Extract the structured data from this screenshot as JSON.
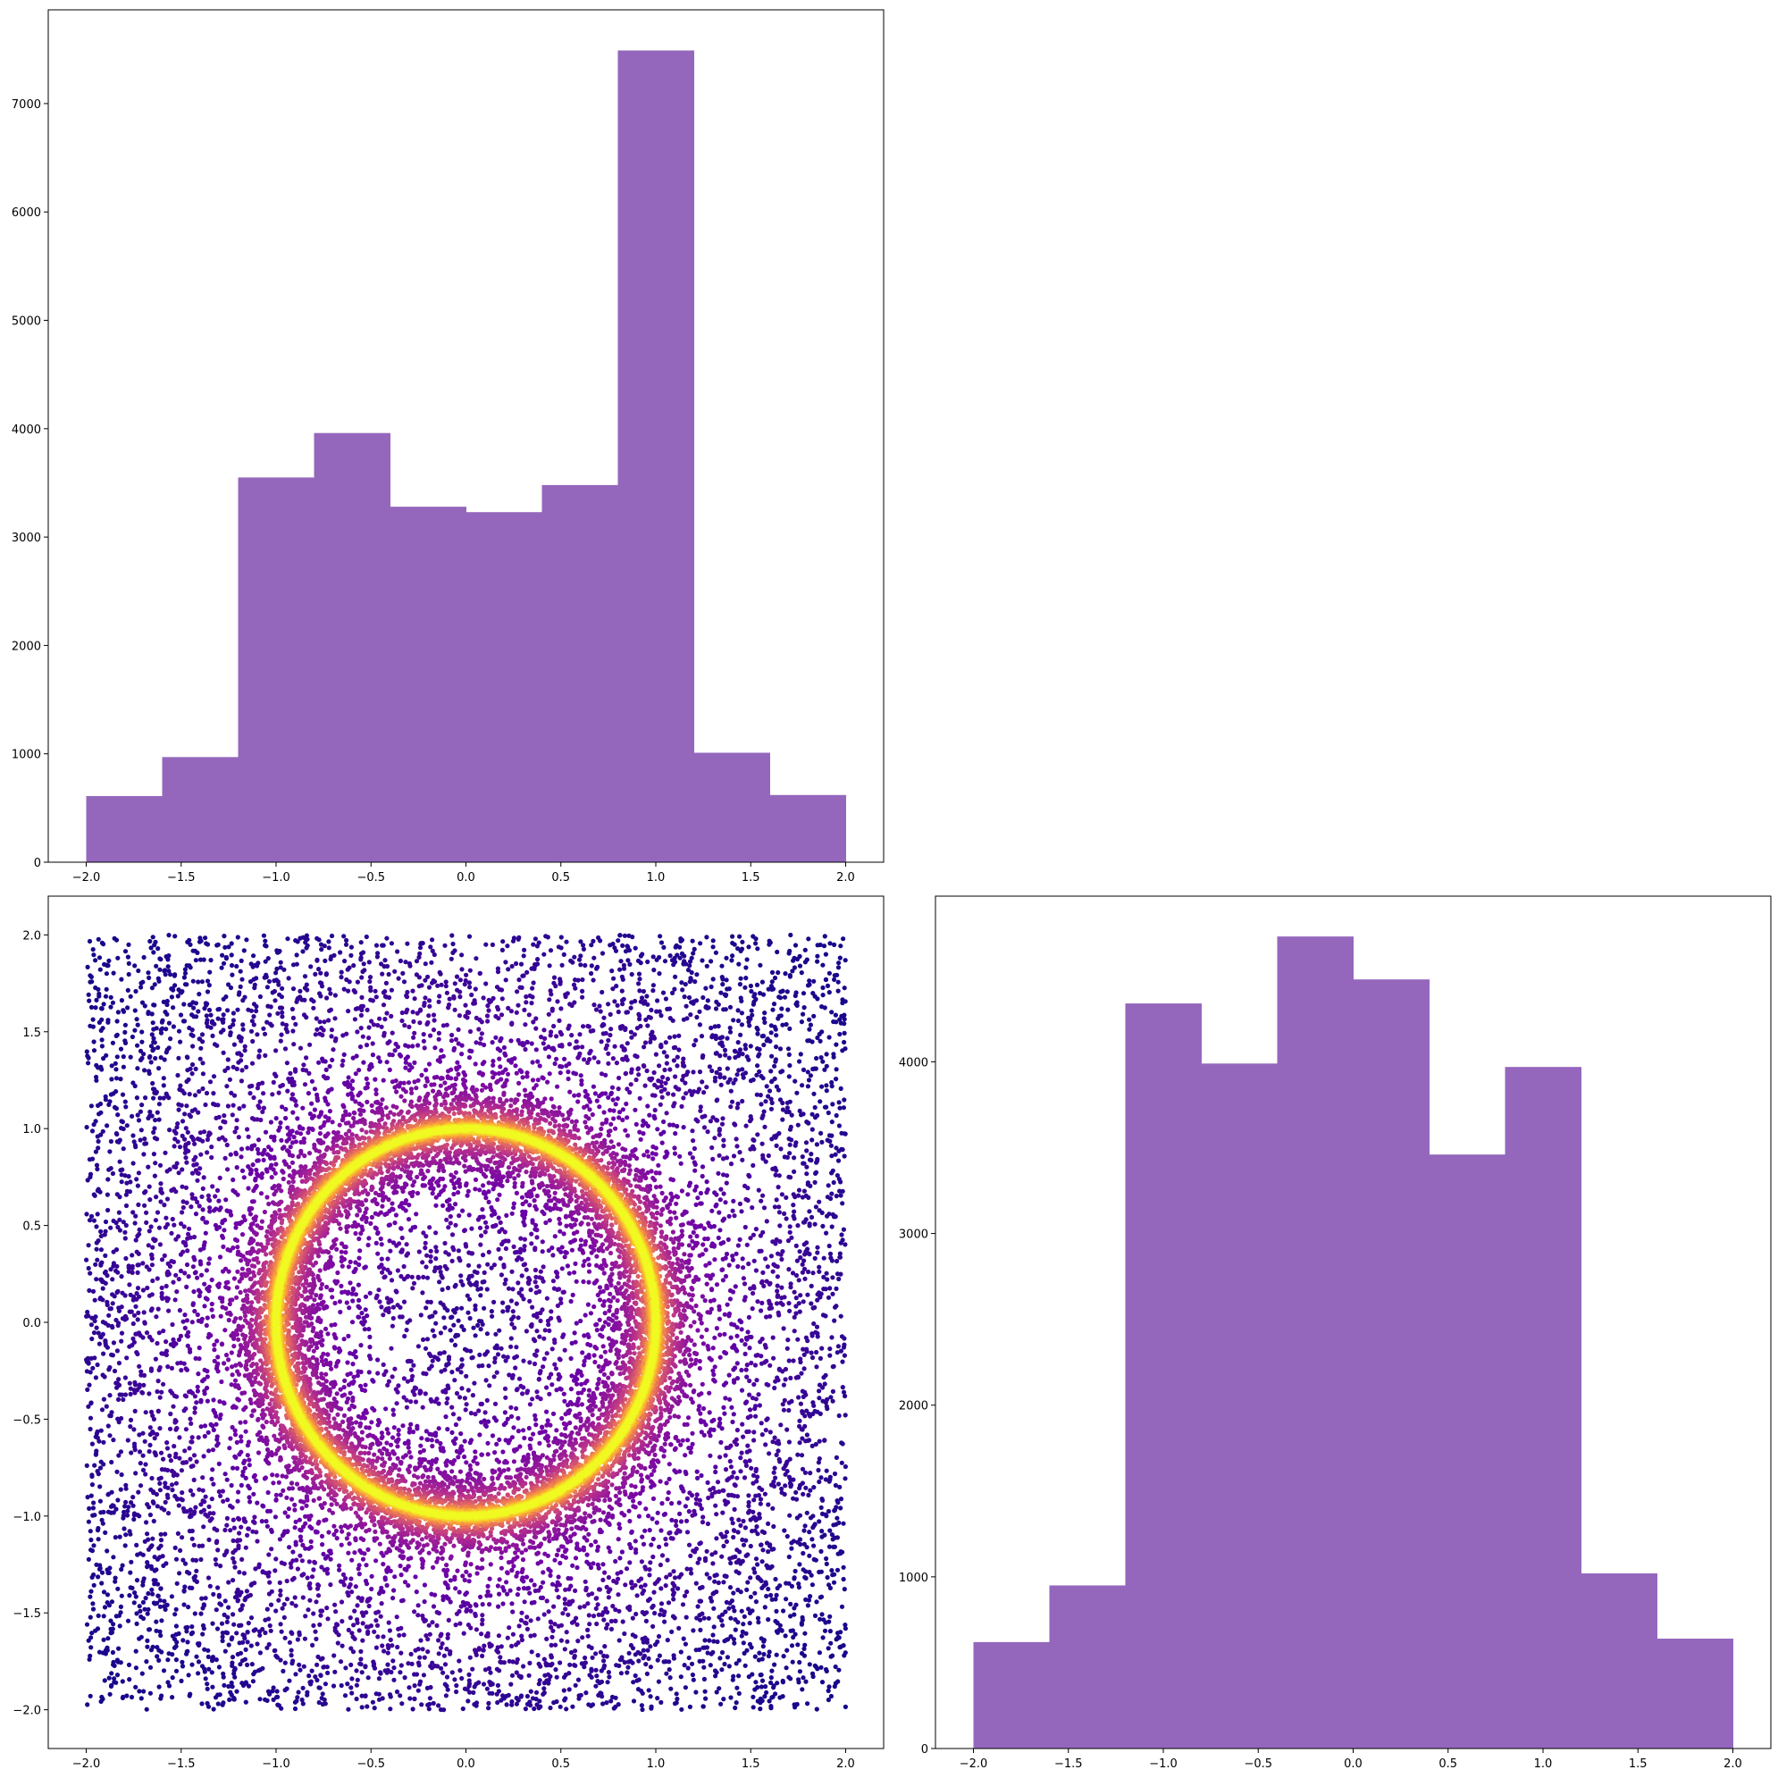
{
  "chart_data": [
    {
      "id": "hist_top",
      "type": "bar",
      "title": "",
      "xlabel": "",
      "ylabel": "",
      "bin_edges": [
        -2.0,
        -1.6,
        -1.2,
        -0.8,
        -0.4,
        0.0,
        0.4,
        0.8,
        1.2,
        1.6,
        2.0
      ],
      "values": [
        610,
        970,
        3550,
        3960,
        3280,
        3230,
        3480,
        7490,
        1010,
        620
      ],
      "xlim": [
        -2.2,
        2.2
      ],
      "ylim": [
        0,
        7865
      ],
      "xticks": [
        -2.0,
        -1.5,
        -1.0,
        -0.5,
        0.0,
        0.5,
        1.0,
        1.5,
        2.0
      ],
      "xtick_labels": [
        "−2.0",
        "−1.5",
        "−1.0",
        "−0.5",
        "0.0",
        "0.5",
        "1.0",
        "1.5",
        "2.0"
      ],
      "yticks": [
        0,
        1000,
        2000,
        3000,
        4000,
        5000,
        6000,
        7000
      ],
      "ytick_labels": [
        "0",
        "1000",
        "2000",
        "3000",
        "4000",
        "5000",
        "6000",
        "7000"
      ],
      "color": "#9467bd",
      "grid": false
    },
    {
      "id": "scatter",
      "type": "scatter",
      "title": "",
      "xlabel": "",
      "ylabel": "",
      "description_of_points": {
        "uniform_background": {
          "x_range": [
            -2,
            2
          ],
          "y_range": [
            -2,
            2
          ]
        },
        "ring": {
          "center": [
            0,
            0
          ],
          "radius": 1.0
        }
      },
      "xlim": [
        -2.2,
        2.2
      ],
      "ylim": [
        -2.2,
        2.2
      ],
      "xticks": [
        -2.0,
        -1.5,
        -1.0,
        -0.5,
        0.0,
        0.5,
        1.0,
        1.5,
        2.0
      ],
      "xtick_labels": [
        "−2.0",
        "−1.5",
        "−1.0",
        "−0.5",
        "0.0",
        "0.5",
        "1.0",
        "1.5",
        "2.0"
      ],
      "yticks": [
        -2.0,
        -1.5,
        -1.0,
        -0.5,
        0.0,
        0.5,
        1.0,
        1.5,
        2.0
      ],
      "ytick_labels": [
        "−2.0",
        "−1.5",
        "−1.0",
        "−0.5",
        "0.0",
        "0.5",
        "1.0",
        "1.5",
        "2.0"
      ],
      "colormap": "plasma",
      "colormap_stops": [
        "#0d0887",
        "#6a00a8",
        "#b12a90",
        "#e16462",
        "#fca636",
        "#f0f921"
      ],
      "grid": false
    },
    {
      "id": "hist_right",
      "type": "bar",
      "title": "",
      "xlabel": "",
      "ylabel": "",
      "bin_edges": [
        -2.0,
        -1.6,
        -1.2,
        -0.8,
        -0.4,
        0.0,
        0.4,
        0.8,
        1.2,
        1.6,
        2.0
      ],
      "values": [
        620,
        950,
        4340,
        3990,
        4730,
        4480,
        3460,
        3970,
        1020,
        640
      ],
      "xlim": [
        -2.2,
        2.2
      ],
      "ylim": [
        0,
        4965
      ],
      "xticks": [
        -2.0,
        -1.5,
        -1.0,
        -0.5,
        0.0,
        0.5,
        1.0,
        1.5,
        2.0
      ],
      "xtick_labels": [
        "−2.0",
        "−1.5",
        "−1.0",
        "−0.5",
        "0.0",
        "0.5",
        "1.0",
        "1.5",
        "2.0"
      ],
      "yticks": [
        0,
        1000,
        2000,
        3000,
        4000
      ],
      "ytick_labels": [
        "0",
        "1000",
        "2000",
        "3000",
        "4000"
      ],
      "color": "#9467bd",
      "grid": false
    }
  ]
}
